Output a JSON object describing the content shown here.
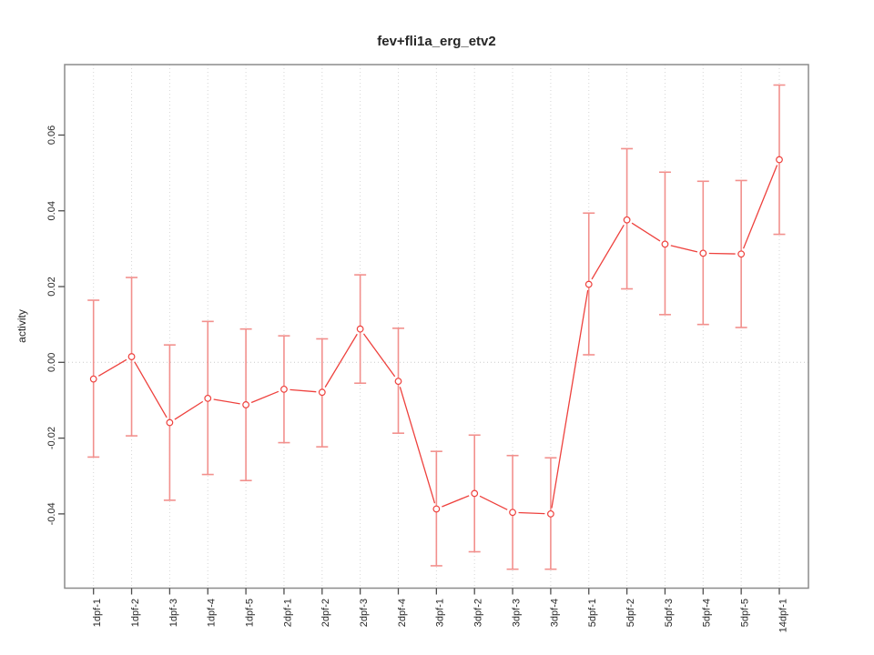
{
  "figure": {
    "background": "#ffffff"
  },
  "chart_data": {
    "type": "line",
    "title": "fev+fli1a_erg_etv2",
    "xlabel": "",
    "ylabel": "activity",
    "legend_position": "none",
    "grid": {
      "vertical_dotted_at_each_category": true,
      "horizontal_dotted_at_zero": true
    },
    "categories": [
      "1dpf-1",
      "1dpf-2",
      "1dpf-3",
      "1dpf-4",
      "1dpf-5",
      "2dpf-1",
      "2dpf-2",
      "2dpf-3",
      "2dpf-4",
      "3dpf-1",
      "3dpf-2",
      "3dpf-3",
      "3dpf-4",
      "5dpf-1",
      "5dpf-2",
      "5dpf-3",
      "5dpf-4",
      "5dpf-5",
      "14dpf-1"
    ],
    "series": [
      {
        "name": "activity",
        "marker": "open-circle",
        "values": [
          -0.0044,
          0.0015,
          -0.0159,
          -0.0095,
          -0.0112,
          -0.0071,
          -0.0079,
          0.0088,
          -0.005,
          -0.0387,
          -0.0346,
          -0.0396,
          -0.04,
          0.0206,
          0.0376,
          0.0312,
          0.0288,
          0.0286,
          0.0535
        ],
        "error_low": [
          -0.025,
          -0.0194,
          -0.0364,
          -0.0296,
          -0.0312,
          -0.0212,
          -0.0223,
          -0.0055,
          -0.0187,
          -0.0537,
          -0.05,
          -0.0546,
          -0.0546,
          0.002,
          0.0194,
          0.0126,
          0.01,
          0.0092,
          0.0338
        ],
        "error_high": [
          0.0164,
          0.0224,
          0.0046,
          0.0108,
          0.0088,
          0.007,
          0.0062,
          0.0231,
          0.009,
          -0.0235,
          -0.0192,
          -0.0246,
          -0.0252,
          0.0394,
          0.0564,
          0.0502,
          0.0478,
          0.048,
          0.0732
        ]
      }
    ],
    "ylim": [
      -0.0596,
      0.0786
    ],
    "yticks": [
      {
        "value": -0.04,
        "label": "-0.04"
      },
      {
        "value": -0.02,
        "label": "-0.02"
      },
      {
        "value": 0.0,
        "label": "0.00"
      },
      {
        "value": 0.02,
        "label": "0.02"
      },
      {
        "value": 0.04,
        "label": "0.04"
      },
      {
        "value": 0.06,
        "label": "0.06"
      }
    ],
    "colors": {
      "line": "#ee413d",
      "marker_stroke": "#ee413d",
      "marker_fill": "#ffffff",
      "error_bar": "#f2908d",
      "gridline": "#d6d6d6",
      "zero_line": "#cccccc",
      "box_border": "#8c8c8c",
      "tick_mark": "#4d4d4d",
      "label_text": "#262626"
    }
  }
}
